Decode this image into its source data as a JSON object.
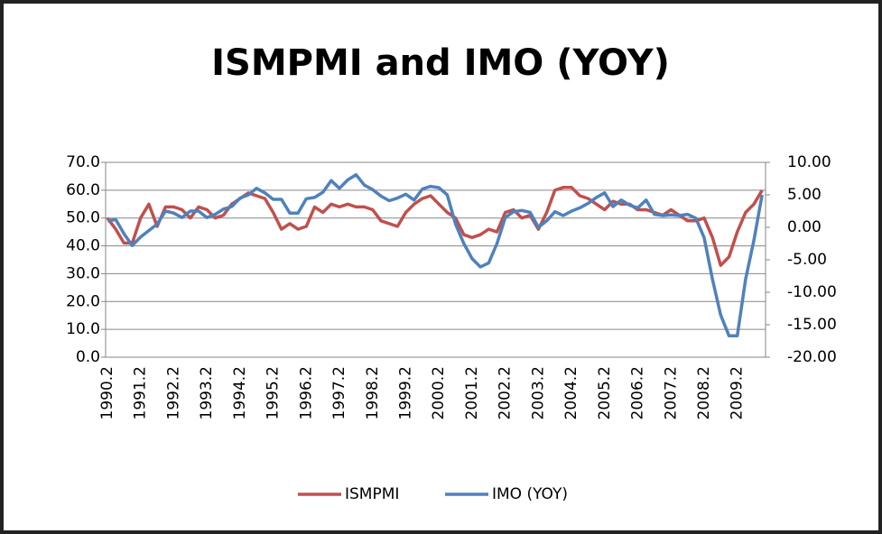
{
  "chart_data": {
    "type": "line",
    "title": "ISMPMI and IMO (YOY)",
    "categories": [
      "1990.2",
      null,
      null,
      null,
      "1991.2",
      null,
      null,
      null,
      "1992.2",
      null,
      null,
      null,
      "1993.2",
      null,
      null,
      null,
      "1994.2",
      null,
      null,
      null,
      "1995.2",
      null,
      null,
      null,
      "1996.2",
      null,
      null,
      null,
      "1997.2",
      null,
      null,
      null,
      "1998.2",
      null,
      null,
      null,
      "1999.2",
      null,
      null,
      null,
      "2000.2",
      null,
      null,
      null,
      "2001.2",
      null,
      null,
      null,
      "2002.2",
      null,
      null,
      null,
      "2003.2",
      null,
      null,
      null,
      "2004.2",
      null,
      null,
      null,
      "2005.2",
      null,
      null,
      null,
      "2006.2",
      null,
      null,
      null,
      "2007.2",
      null,
      null,
      null,
      "2008.2",
      null,
      null,
      null,
      "2009.2",
      null,
      null,
      null
    ],
    "series": [
      {
        "name": "ISMPMI",
        "color": "#c0504d",
        "values": [
          50,
          46,
          41,
          41,
          50,
          55,
          47,
          54,
          54,
          53,
          50,
          54,
          53,
          50,
          51,
          55,
          57,
          59,
          58,
          57,
          52,
          46,
          48,
          46,
          47,
          54,
          52,
          55,
          54,
          55,
          54,
          54,
          53,
          49,
          48,
          47,
          52,
          55,
          57,
          58,
          55,
          52,
          50,
          44,
          43,
          44,
          46,
          45,
          52,
          53,
          50,
          51,
          46,
          52,
          60,
          61,
          61,
          58,
          57,
          55,
          53,
          56,
          55,
          55,
          53,
          53,
          52,
          51,
          53,
          51,
          49,
          49,
          50,
          43,
          33,
          36,
          45,
          52,
          55,
          60
        ]
      },
      {
        "name": "IMO (YOY)",
        "color": "#4f81bd",
        "axis": "y2",
        "values": [
          1.0,
          1.2,
          -1.0,
          -2.8,
          -1.5,
          -0.5,
          0.5,
          2.5,
          2.2,
          1.5,
          2.5,
          2.5,
          1.5,
          2.0,
          2.8,
          3.2,
          4.5,
          5.0,
          6.0,
          5.3,
          4.3,
          4.3,
          2.2,
          2.2,
          4.4,
          4.6,
          5.4,
          7.2,
          6.0,
          7.3,
          8.1,
          6.5,
          5.8,
          4.8,
          4.1,
          4.5,
          5.1,
          4.2,
          5.9,
          6.3,
          6.1,
          5.0,
          0.5,
          -2.5,
          -4.8,
          -6.1,
          -5.5,
          -2.5,
          1.5,
          2.4,
          2.6,
          2.3,
          0.0,
          1.0,
          2.4,
          1.8,
          2.5,
          3.0,
          3.7,
          4.6,
          5.3,
          3.2,
          4.2,
          3.4,
          3.0,
          4.2,
          2.0,
          1.8,
          1.9,
          1.8,
          2.0,
          1.4,
          -1.6,
          -8.0,
          -13.5,
          -16.7,
          -16.7,
          -8.0,
          -2.0,
          5.0
        ]
      }
    ],
    "ylim": [
      0,
      70
    ],
    "yticks": [
      {
        "value": 0,
        "label": "0.0"
      },
      {
        "value": 10,
        "label": "10.0"
      },
      {
        "value": 20,
        "label": "20.0"
      },
      {
        "value": 30,
        "label": "30.0"
      },
      {
        "value": 40,
        "label": "40.0"
      },
      {
        "value": 50,
        "label": "50.0"
      },
      {
        "value": 60,
        "label": "60.0"
      },
      {
        "value": 70,
        "label": "70.0"
      }
    ],
    "y2lim": [
      -20,
      10
    ],
    "y2ticks": [
      {
        "value": -20,
        "label": "-20.00"
      },
      {
        "value": -15,
        "label": "-15.00"
      },
      {
        "value": -10,
        "label": "-10.00"
      },
      {
        "value": -5,
        "label": "-5.00"
      },
      {
        "value": 0,
        "label": "0.00"
      },
      {
        "value": 5,
        "label": "5.00"
      },
      {
        "value": 10,
        "label": "10.00"
      }
    ],
    "grid": true,
    "legend": "bottom"
  }
}
